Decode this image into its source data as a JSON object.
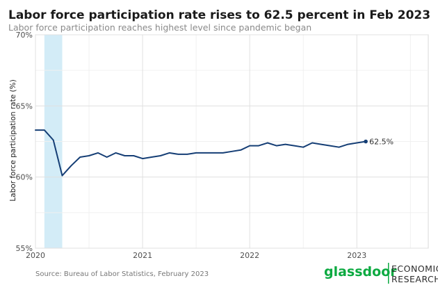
{
  "chart_data": {
    "type": "line",
    "title": "Labor force participation rate rises to 62.5 percent in Feb 2023",
    "subtitle": "Labor force participation reaches highest level since pandemic began",
    "ylabel": "Labor force participation rate (%)",
    "xlabel": "",
    "ylim": [
      55,
      70
    ],
    "xlim": [
      2020.0,
      2023.6667
    ],
    "yticks": [
      {
        "value": 55,
        "label": "55%"
      },
      {
        "value": 60,
        "label": "60%"
      },
      {
        "value": 65,
        "label": "65%"
      },
      {
        "value": 70,
        "label": "70%"
      }
    ],
    "xticks": [
      {
        "value": 2020,
        "label": "2020"
      },
      {
        "value": 2021,
        "label": "2021"
      },
      {
        "value": 2022,
        "label": "2022"
      },
      {
        "value": 2023,
        "label": "2023"
      }
    ],
    "grid": true,
    "shaded_region": {
      "start": 2020.0833,
      "end": 2020.25,
      "color": "#d3ecf7",
      "meaning": "recession"
    },
    "series": [
      {
        "name": "Labor force participation rate",
        "color": "#153e75",
        "x": [
          2020.0,
          2020.0833,
          2020.1667,
          2020.25,
          2020.3333,
          2020.4167,
          2020.5,
          2020.5833,
          2020.6667,
          2020.75,
          2020.8333,
          2020.9167,
          2021.0,
          2021.0833,
          2021.1667,
          2021.25,
          2021.3333,
          2021.4167,
          2021.5,
          2021.5833,
          2021.6667,
          2021.75,
          2021.8333,
          2021.9167,
          2022.0,
          2022.0833,
          2022.1667,
          2022.25,
          2022.3333,
          2022.4167,
          2022.5,
          2022.5833,
          2022.6667,
          2022.75,
          2022.8333,
          2022.9167,
          2023.0,
          2023.0833
        ],
        "values": [
          63.3,
          63.3,
          62.6,
          60.1,
          60.8,
          61.4,
          61.5,
          61.7,
          61.4,
          61.7,
          61.5,
          61.5,
          61.3,
          61.4,
          61.5,
          61.7,
          61.6,
          61.6,
          61.7,
          61.7,
          61.7,
          61.7,
          61.8,
          61.9,
          62.2,
          62.2,
          62.4,
          62.2,
          62.3,
          62.2,
          62.1,
          62.4,
          62.3,
          62.2,
          62.1,
          62.3,
          62.4,
          62.5
        ]
      }
    ],
    "endpoint_label": "62.5%",
    "source": "Source: Bureau of Labor Statistics, February 2023"
  },
  "brand": {
    "name": "glassdoor",
    "division_line1": "ECONOMIC",
    "division_line2": "RESEARCH",
    "color": "#0caa41",
    "division_color": "#2c2c2c"
  }
}
